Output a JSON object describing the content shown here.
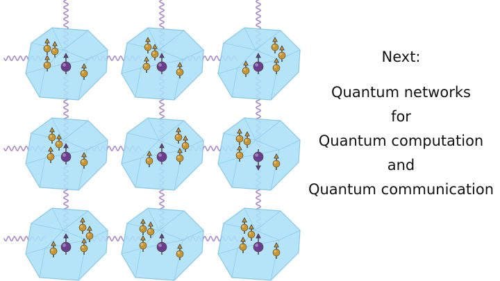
{
  "slide": {
    "heading": "Next:",
    "lines": [
      "Quantum networks",
      "for",
      "Quantum computation",
      "and",
      "Quantum communication"
    ]
  },
  "colors": {
    "crystal_fill": "#aee0f8",
    "crystal_edge": "#7cc3e6",
    "photon_wave": "#a98bc9",
    "nuclear_spin": "#c9962f",
    "electron_spin": "#6a3d8f"
  },
  "grid": {
    "rows": 3,
    "cols": 3
  },
  "icons": {
    "node": "diamond-crystal-icon",
    "photon": "photon-wave-icon",
    "nuclear_spin": "nuclear-spin-icon",
    "electron_spin": "electron-spin-icon"
  }
}
